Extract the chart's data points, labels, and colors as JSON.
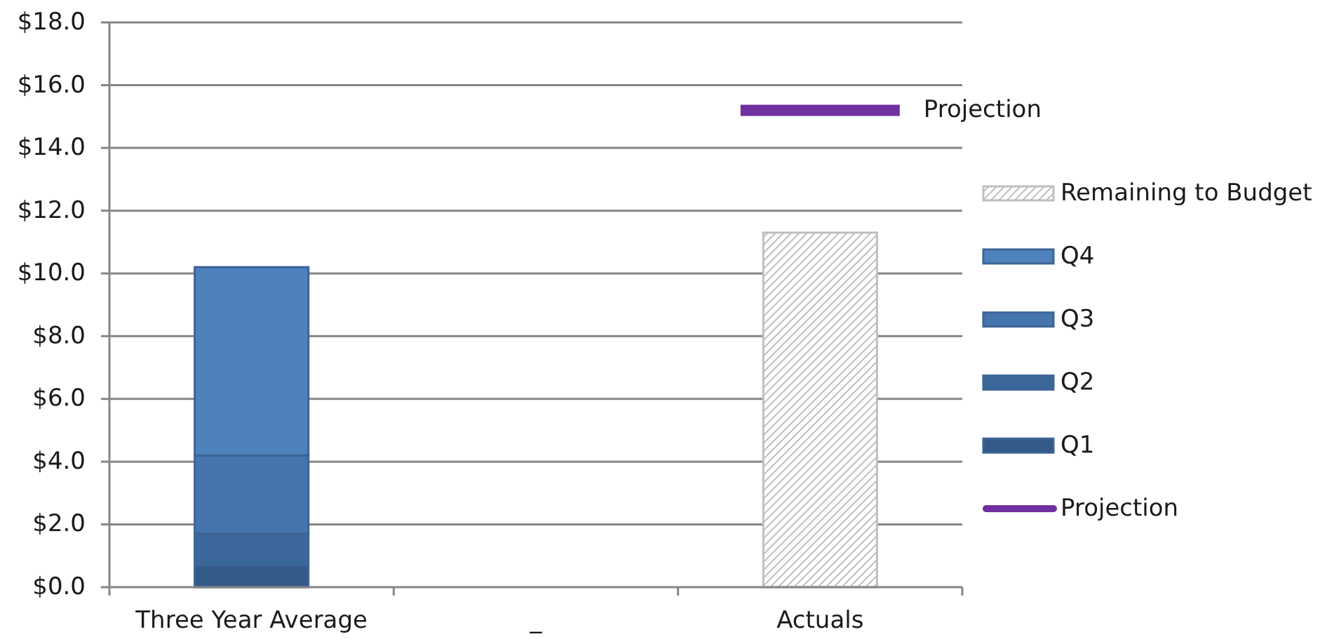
{
  "chart_data": {
    "type": "bar",
    "stacked": true,
    "categories": [
      "Three Year Average",
      "_",
      "Actuals"
    ],
    "series": [
      {
        "name": "Q1",
        "color": "#335a89",
        "values": [
          0.7,
          null,
          null
        ]
      },
      {
        "name": "Q2",
        "color": "#3c679a",
        "values": [
          1.0,
          null,
          null
        ]
      },
      {
        "name": "Q3",
        "color": "#4674ad",
        "values": [
          2.5,
          null,
          null
        ]
      },
      {
        "name": "Q4",
        "color": "#4f81bd",
        "values": [
          6.0,
          null,
          null
        ]
      },
      {
        "name": "Remaining to Budget",
        "color": "#bfbfbf",
        "values": [
          null,
          null,
          11.3
        ]
      }
    ],
    "ref_lines": [
      {
        "axis": "y",
        "value": 15.2,
        "label": "Projection",
        "color": "#7030a0"
      }
    ],
    "ylim": [
      0,
      18
    ],
    "yticks": [
      {
        "value": 0,
        "label": "$0.0"
      },
      {
        "value": 2,
        "label": "$2.0"
      },
      {
        "value": 4,
        "label": "$4.0"
      },
      {
        "value": 6,
        "label": "$6.0"
      },
      {
        "value": 8,
        "label": "$8.0"
      },
      {
        "value": 10,
        "label": "$10.0"
      },
      {
        "value": 12,
        "label": "$12.0"
      },
      {
        "value": 14,
        "label": "$14.0"
      },
      {
        "value": 16,
        "label": "$16.0"
      },
      {
        "value": 18,
        "label": "$18.0"
      }
    ],
    "grid": "y",
    "legend": "right"
  }
}
